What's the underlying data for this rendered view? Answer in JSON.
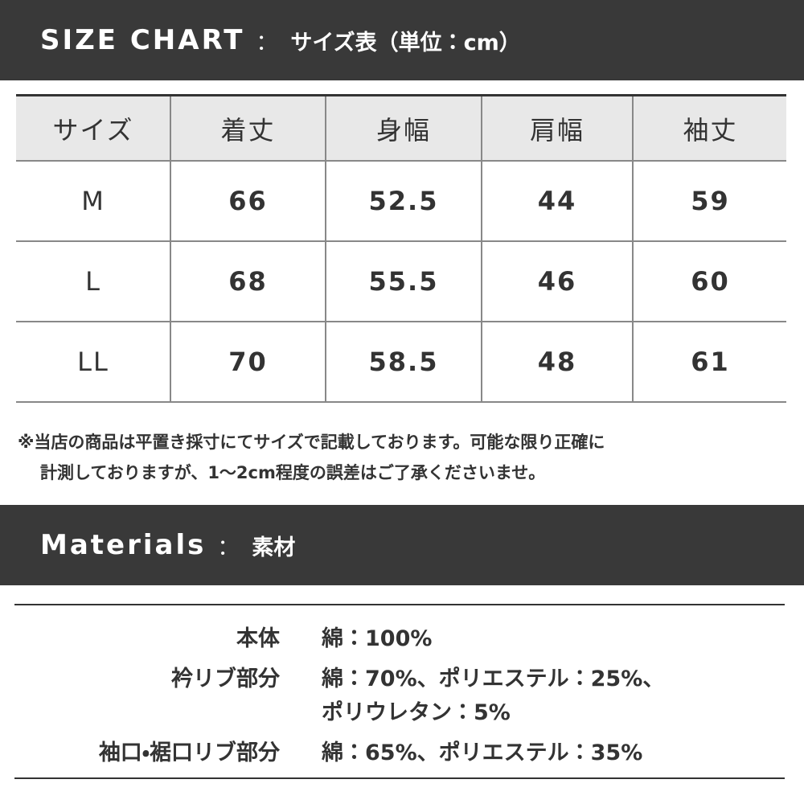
{
  "size_chart": {
    "title": "SIZE CHART",
    "separator": "：",
    "subtitle": "サイズ表（単位：cm）",
    "table": {
      "header": [
        "サイズ",
        "着丈",
        "身幅",
        "肩幅",
        "袖丈"
      ],
      "rows": [
        [
          "M",
          66,
          52.5,
          44,
          59
        ],
        [
          "L",
          68,
          55.5,
          46,
          60
        ],
        [
          "LL",
          70,
          58.5,
          48,
          61
        ]
      ]
    },
    "notes": [
      "※当店の商品は平置き採寸にてサイズで記載しております。可能な限り正確に",
      "計測しておりますが、1〜2cm程度の誤差はご了承くださいませ。"
    ]
  },
  "materials": {
    "title": "Materials",
    "separator": "：",
    "subtitle": "素材",
    "rows": [
      {
        "label": "本体",
        "lines": [
          "綿：100%"
        ]
      },
      {
        "label": "衿リブ部分",
        "lines": [
          "綿：70%、ポリエステル：25%、",
          "ポリウレタン：5%"
        ]
      },
      {
        "label": "袖口・裾口リブ部分",
        "lines": [
          "綿：65%、ポリエステル：35%"
        ]
      }
    ]
  }
}
